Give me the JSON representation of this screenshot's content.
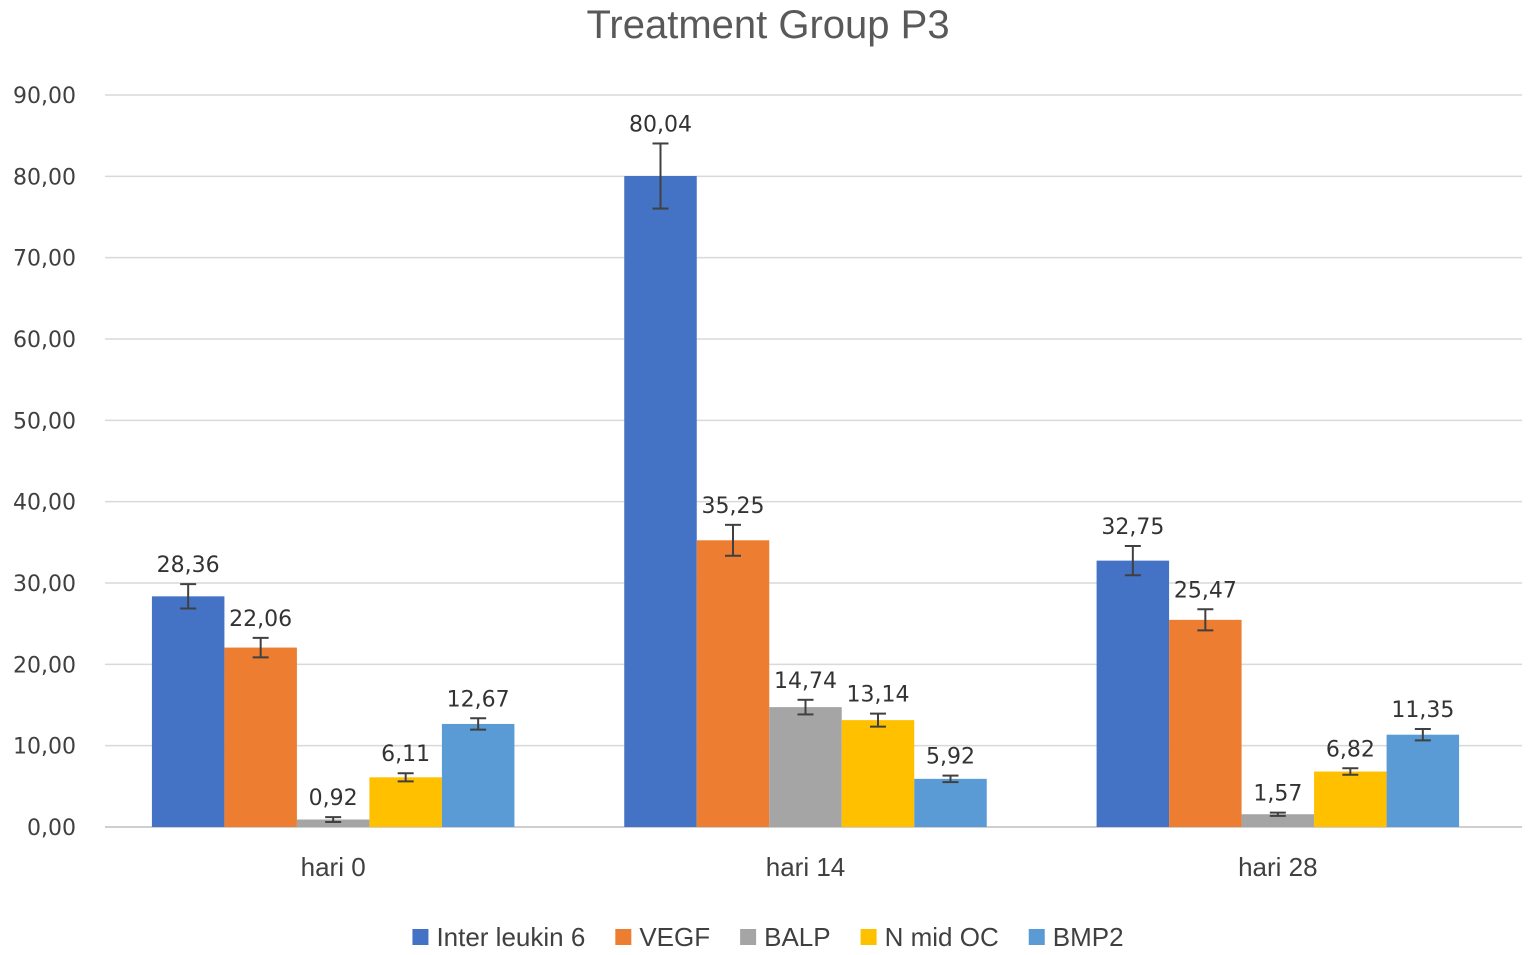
{
  "chart_data": {
    "type": "bar",
    "title": "Treatment Group P3",
    "categories": [
      "hari 0",
      "hari 14",
      "hari 28"
    ],
    "series": [
      {
        "name": "Inter leukin 6",
        "color": "#4472c4",
        "values": [
          28.36,
          80.04,
          32.75
        ],
        "labels": [
          "28,36",
          "80,04",
          "32,75"
        ],
        "errors": [
          1.5,
          4.0,
          1.8
        ]
      },
      {
        "name": "VEGF",
        "color": "#ed7d31",
        "values": [
          22.06,
          35.25,
          25.47
        ],
        "labels": [
          "22,06",
          "35,25",
          "25,47"
        ],
        "errors": [
          1.2,
          1.9,
          1.3
        ]
      },
      {
        "name": "BALP",
        "color": "#a5a5a5",
        "values": [
          0.92,
          14.74,
          1.57
        ],
        "labels": [
          "0,92",
          "14,74",
          "1,57"
        ],
        "errors": [
          0.3,
          0.9,
          0.2
        ]
      },
      {
        "name": "N mid OC",
        "color": "#ffc000",
        "values": [
          6.11,
          13.14,
          6.82
        ],
        "labels": [
          "6,11",
          "13,14",
          "6,82"
        ],
        "errors": [
          0.5,
          0.8,
          0.4
        ]
      },
      {
        "name": "BMP2",
        "color": "#5b9bd5",
        "values": [
          12.67,
          5.92,
          11.35
        ],
        "labels": [
          "12,67",
          "5,92",
          "11,35"
        ],
        "errors": [
          0.7,
          0.4,
          0.7
        ]
      }
    ],
    "ylim": [
      0,
      90
    ],
    "yticks": [
      0,
      10,
      20,
      30,
      40,
      50,
      60,
      70,
      80,
      90
    ],
    "ytick_labels": [
      "0,00",
      "10,00",
      "20,00",
      "30,00",
      "40,00",
      "50,00",
      "60,00",
      "70,00",
      "80,00",
      "90,00"
    ],
    "xlabel": "",
    "ylabel": "",
    "grid": true,
    "legend": "bottom",
    "error_bars": true
  }
}
